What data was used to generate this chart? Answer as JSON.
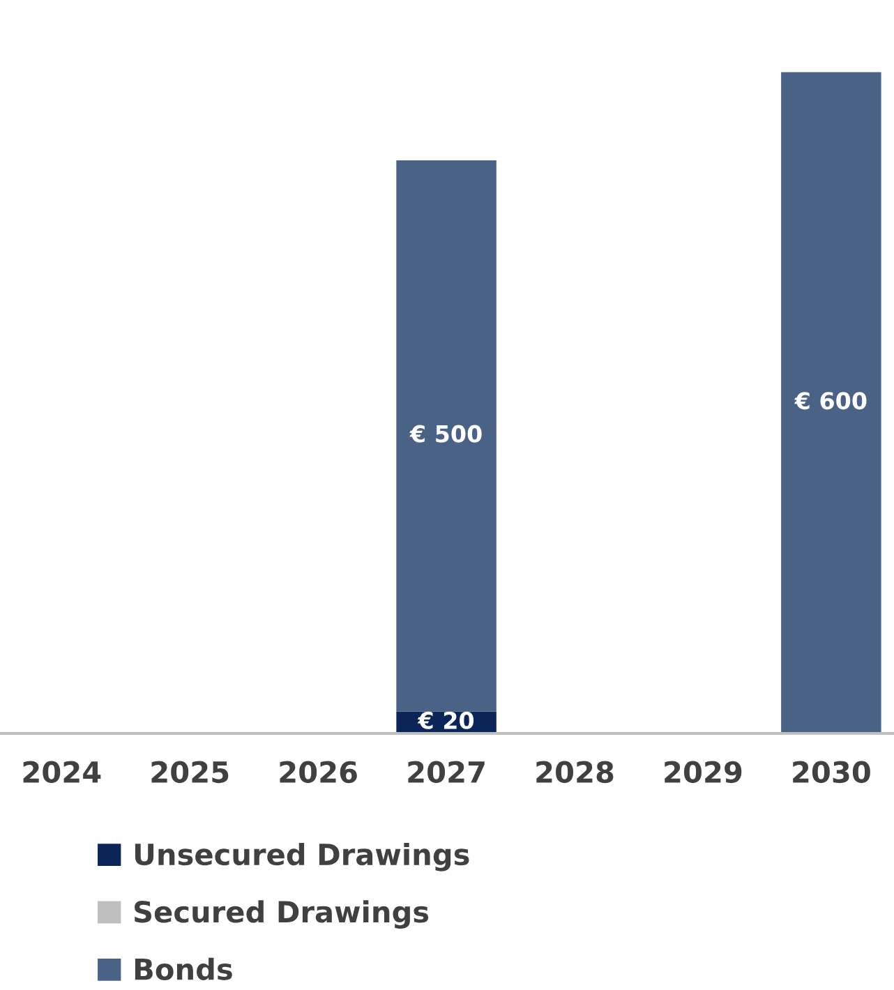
{
  "chart_data": {
    "type": "bar",
    "stacked": true,
    "legend": "bottom",
    "categories": [
      "2024",
      "2025",
      "2026",
      "2027",
      "2028",
      "2029",
      "2030"
    ],
    "series": [
      {
        "name": "Unsecured Drawings",
        "color": "#0b2558",
        "values": [
          null,
          null,
          null,
          20,
          null,
          null,
          null
        ],
        "value_labels": [
          null,
          null,
          null,
          "€ 20",
          null,
          null,
          null
        ]
      },
      {
        "name": "Secured Drawings",
        "color": "#bfbfbf",
        "values": [
          null,
          null,
          null,
          null,
          null,
          null,
          null
        ]
      },
      {
        "name": "Bonds",
        "color": "#4a6286",
        "values": [
          null,
          null,
          null,
          500,
          null,
          null,
          600
        ],
        "value_labels": [
          null,
          null,
          null,
          "€ 500",
          null,
          null,
          "€ 600"
        ]
      }
    ]
  }
}
